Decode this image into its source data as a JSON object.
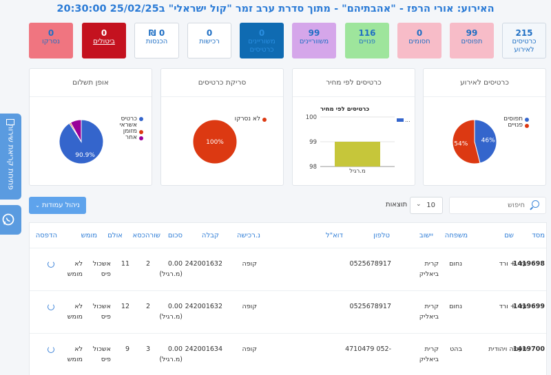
{
  "title": "האירוע: אורי הרפז - \"אהבתיהם\" - מתוך סדרת ערב זמר \"קול ישראלי\" ב25/02/25 20:30:00",
  "stats": [
    {
      "value": "215",
      "label": "כרטיסים לאירוע",
      "bg": "#f3f7fb",
      "fg": "#1f6fc4",
      "border": "#cfd8e2"
    },
    {
      "value": "99",
      "label": "תפוסים",
      "bg": "#f7bcc8",
      "fg": "#1f6fc4",
      "border": "#f7bcc8"
    },
    {
      "value": "0",
      "label": "חסומים",
      "bg": "#f7bcc8",
      "fg": "#1f6fc4",
      "border": "#f7bcc8"
    },
    {
      "value": "116",
      "label": "פנויים",
      "bg": "#9ee59c",
      "fg": "#1f6fc4",
      "border": "#9ee59c"
    },
    {
      "value": "99",
      "label": "משווריינים",
      "bg": "#d5a6ea",
      "fg": "#1f6fc4",
      "border": "#d5a6ea"
    },
    {
      "value": "0",
      "label": "משוריינים כרטיסים",
      "bg": "#0f6bb2",
      "fg": "#2a8ee0",
      "border": "#0f6bb2"
    },
    {
      "value": "0",
      "label": "רכישות",
      "bg": "#ffffff",
      "fg": "#1f6fc4",
      "border": "#d3d9e0"
    },
    {
      "value": "0 ₪",
      "label": "הכנסות",
      "bg": "#ffffff",
      "fg": "#1f6fc4",
      "border": "#d3d9e0"
    },
    {
      "value": "0",
      "label": "ביטולים",
      "bg": "#c4121f",
      "fg": "#ffffff",
      "border": "#c4121f",
      "underline": true
    },
    {
      "value": "0",
      "label": "נסרקו",
      "bg": "#f07580",
      "fg": "#1f6fc4",
      "border": "#f07580"
    }
  ],
  "charts": {
    "tickets": {
      "title": "כרטיסים לאירוע",
      "legend": [
        "תפוסים",
        "פנויים"
      ],
      "labels": [
        "46%",
        "54%"
      ]
    },
    "price": {
      "title": "כרטיסים לפי מחיר",
      "inner_title": "כרטיסים לפי מחיר",
      "legend": "...",
      "ticks": [
        "100",
        "99",
        "98"
      ],
      "bar_label": "מ.רגיל"
    },
    "scan": {
      "title": "סריקת כרטיסים",
      "legend": "לא נסרקו",
      "label": "100%"
    },
    "payment": {
      "title": "אופן תשלום",
      "legend": [
        "כרטיס אשראי",
        "מזומן",
        "אחר"
      ],
      "label": "90.9%"
    }
  },
  "chart_data": [
    {
      "type": "pie",
      "title": "כרטיסים לאירוע",
      "labels": [
        "תפוסים",
        "פנויים"
      ],
      "values": [
        46,
        54
      ],
      "colors": [
        "#3465cc",
        "#dc3912"
      ]
    },
    {
      "type": "bar",
      "title": "כרטיסים לפי מחיר",
      "categories": [
        "מ.רגיל"
      ],
      "values": [
        99
      ],
      "ylim": [
        98,
        100
      ],
      "colors": [
        "#c6c63a"
      ]
    },
    {
      "type": "pie",
      "title": "סריקת כרטיסים",
      "labels": [
        "לא נסרקו"
      ],
      "values": [
        100
      ],
      "colors": [
        "#dc3912"
      ]
    },
    {
      "type": "pie",
      "title": "אופן תשלום",
      "labels": [
        "כרטיס אשראי",
        "מזומן",
        "אחר"
      ],
      "values": [
        90.9,
        1.0,
        8.1
      ],
      "colors": [
        "#3465cc",
        "#dc3912",
        "#990099"
      ]
    }
  ],
  "sidetab": {
    "label": "פתיחת קריאת שירות"
  },
  "controls": {
    "columns_btn": "ניהול עמודות",
    "results_label": "תוצאות",
    "per_page": "10",
    "search_placeholder": "חיפוש"
  },
  "table": {
    "headers": [
      "מסד",
      "שם",
      "משפחה",
      "יישוב",
      "טלפון",
      "דוא\"ל",
      "נ.רכישה",
      "קבלה",
      "סכום",
      "שורה",
      "כסא",
      "אולם",
      "מומש",
      "הדפסה"
    ],
    "rows": [
      {
        "id": "1419698",
        "first": "עדי + ורד",
        "last": "נחום",
        "city": "קרית ביאליק",
        "phone": "0525678917",
        "email": "",
        "method": "קופה",
        "receipt": "242001632",
        "amount": "0.00",
        "amount_sub": "(מ.רגיל)",
        "row": "2",
        "seat": "11",
        "hall": "אשכול פיס",
        "used": "לא מומש"
      },
      {
        "id": "1419699",
        "first": "עדי + ורד",
        "last": "נחום",
        "city": "קרית ביאליק",
        "phone": "0525678917",
        "email": "",
        "method": "קופה",
        "receipt": "242001632",
        "amount": "0.00",
        "amount_sub": "(מ.רגיל)",
        "row": "2",
        "seat": "12",
        "hall": "אשכול פיס",
        "used": "לא מומש"
      },
      {
        "id": "1419700",
        "first": "סעדיה ויהודית",
        "last": "בהט",
        "city": "קרית ביאליק",
        "phone": "-052 4710479",
        "email": "",
        "method": "קופה",
        "receipt": "242001634",
        "amount": "0.00",
        "amount_sub": "(מ.רגיל)",
        "row": "3",
        "seat": "9",
        "hall": "אשכול פיס",
        "used": "לא מומש"
      }
    ]
  }
}
